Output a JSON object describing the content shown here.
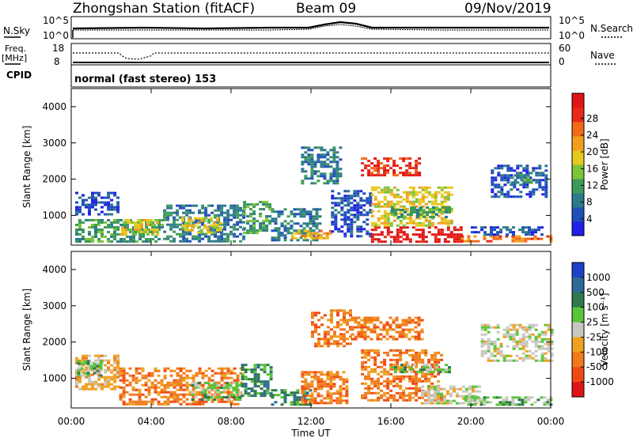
{
  "header": {
    "title": "Zhongshan Station (fitACF)",
    "beam": "Beam 09",
    "date": "09/Nov/2019"
  },
  "summary_panels": {
    "nsky_label": "N.Sky",
    "nsky_ticks": [
      "10^5",
      "10^0"
    ],
    "nsearch_label": "N.Search",
    "nsearch_ticks": [
      "10^5",
      "10^0"
    ],
    "freq_label_1": "Freq.",
    "freq_label_2": "[MHz]",
    "freq_ticks": [
      "18",
      "8"
    ],
    "nave_label": "Nave",
    "nave_ticks": [
      "60",
      "0"
    ],
    "cpid_label": "CPID",
    "cpid_text": "normal (fast stereo) 153"
  },
  "chart_data": [
    {
      "type": "heatmap",
      "name": "power",
      "ylabel": "Slant Range [km]",
      "xlabel": "Time UT",
      "xlim": [
        0,
        24
      ],
      "ylim": [
        180,
        4500
      ],
      "x_ticks": [
        "00:00",
        "04:00",
        "08:00",
        "12:00",
        "16:00",
        "20:00",
        "00:00"
      ],
      "y_ticks": [
        "1000",
        "2000",
        "3000",
        "4000"
      ],
      "colorbar": {
        "label": "Power [dB]",
        "ticks": [
          "4",
          "8",
          "12",
          "16",
          "20",
          "24",
          "28"
        ],
        "colors": [
          "#1f1fe6",
          "#1f4fb8",
          "#2c7a8c",
          "#3e9a5a",
          "#7cc43a",
          "#e6c81f",
          "#f0a01f",
          "#f06a1a",
          "#e82a1a",
          "#e01414"
        ]
      },
      "regions": [
        {
          "t0": 0.2,
          "t1": 4.6,
          "r0": 300,
          "r1": 900,
          "level": 3
        },
        {
          "t0": 0.2,
          "t1": 2.4,
          "r0": 1050,
          "r1": 1650,
          "level": 1
        },
        {
          "t0": 2.5,
          "t1": 4.4,
          "r0": 500,
          "r1": 900,
          "level": 5
        },
        {
          "t0": 4.6,
          "t1": 8.6,
          "r0": 300,
          "r1": 1300,
          "level": 2
        },
        {
          "t0": 5.5,
          "t1": 7.5,
          "r0": 500,
          "r1": 950,
          "level": 5
        },
        {
          "t0": 8.6,
          "t1": 10.0,
          "r0": 500,
          "r1": 1400,
          "level": 3
        },
        {
          "t0": 10.0,
          "t1": 12.5,
          "r0": 300,
          "r1": 1200,
          "level": 2
        },
        {
          "t0": 11.0,
          "t1": 13.0,
          "r0": 350,
          "r1": 600,
          "level": 6
        },
        {
          "t0": 11.5,
          "t1": 13.5,
          "r0": 1900,
          "r1": 2900,
          "level": 2
        },
        {
          "t0": 13.0,
          "t1": 15.0,
          "r0": 400,
          "r1": 1700,
          "level": 1
        },
        {
          "t0": 14.5,
          "t1": 17.5,
          "r0": 2100,
          "r1": 2600,
          "level": 8
        },
        {
          "t0": 15.0,
          "t1": 19.5,
          "r0": 300,
          "r1": 700,
          "level": 9
        },
        {
          "t0": 15.0,
          "t1": 19.0,
          "r0": 700,
          "r1": 1800,
          "level": 5
        },
        {
          "t0": 16.0,
          "t1": 19.0,
          "r0": 950,
          "r1": 1250,
          "level": 3
        },
        {
          "t0": 19.5,
          "t1": 24.0,
          "r0": 300,
          "r1": 450,
          "level": 7
        },
        {
          "t0": 20.0,
          "t1": 23.5,
          "r0": 450,
          "r1": 700,
          "level": 1
        },
        {
          "t0": 21.0,
          "t1": 23.8,
          "r0": 1500,
          "r1": 2400,
          "level": 1
        },
        {
          "t0": 22.0,
          "t1": 23.0,
          "r0": 1900,
          "r1": 2200,
          "level": 3
        }
      ]
    },
    {
      "type": "heatmap",
      "name": "velocity",
      "ylabel": "Slant Range [km]",
      "xlabel": "Time UT",
      "xlim": [
        0,
        24
      ],
      "ylim": [
        180,
        4500
      ],
      "x_ticks": [
        "00:00",
        "04:00",
        "08:00",
        "12:00",
        "16:00",
        "20:00",
        "00:00"
      ],
      "y_ticks": [
        "1000",
        "2000",
        "3000",
        "4000"
      ],
      "colorbar": {
        "label": "Velocity [m s⁻¹]",
        "ticks": [
          "1000",
          "500",
          "100",
          "25",
          "-25",
          "-100",
          "-500",
          "-1000"
        ],
        "colors": [
          "#1f3fc8",
          "#2c6a9a",
          "#2f7a4a",
          "#5ac43a",
          "#c8c8c0",
          "#f0a01f",
          "#f07a1a",
          "#f04a14",
          "#e01414"
        ]
      },
      "regions": [
        {
          "t0": 0.2,
          "t1": 2.4,
          "r0": 700,
          "r1": 1650,
          "level": 5
        },
        {
          "t0": 0.3,
          "t1": 1.5,
          "r0": 1100,
          "r1": 1500,
          "level": 3
        },
        {
          "t0": 2.4,
          "t1": 8.5,
          "r0": 300,
          "r1": 1300,
          "level": 6
        },
        {
          "t0": 6.0,
          "t1": 8.5,
          "r0": 400,
          "r1": 900,
          "level": 3
        },
        {
          "t0": 8.5,
          "t1": 10.0,
          "r0": 500,
          "r1": 1400,
          "level": 2
        },
        {
          "t0": 10.0,
          "t1": 12.0,
          "r0": 300,
          "r1": 700,
          "level": 2
        },
        {
          "t0": 11.5,
          "t1": 13.8,
          "r0": 300,
          "r1": 1200,
          "level": 6
        },
        {
          "t0": 12.0,
          "t1": 14.0,
          "r0": 1900,
          "r1": 2900,
          "level": 6
        },
        {
          "t0": 14.0,
          "t1": 17.5,
          "r0": 2100,
          "r1": 2700,
          "level": 6
        },
        {
          "t0": 14.5,
          "t1": 18.5,
          "r0": 400,
          "r1": 1800,
          "level": 6
        },
        {
          "t0": 16.0,
          "t1": 19.0,
          "r0": 1150,
          "r1": 1400,
          "level": 3
        },
        {
          "t0": 17.5,
          "t1": 20.5,
          "r0": 300,
          "r1": 800,
          "level": 4
        },
        {
          "t0": 19.5,
          "t1": 24.0,
          "r0": 250,
          "r1": 500,
          "level": 3
        },
        {
          "t0": 20.5,
          "t1": 24.0,
          "r0": 1500,
          "r1": 2500,
          "level": 4
        }
      ]
    }
  ]
}
